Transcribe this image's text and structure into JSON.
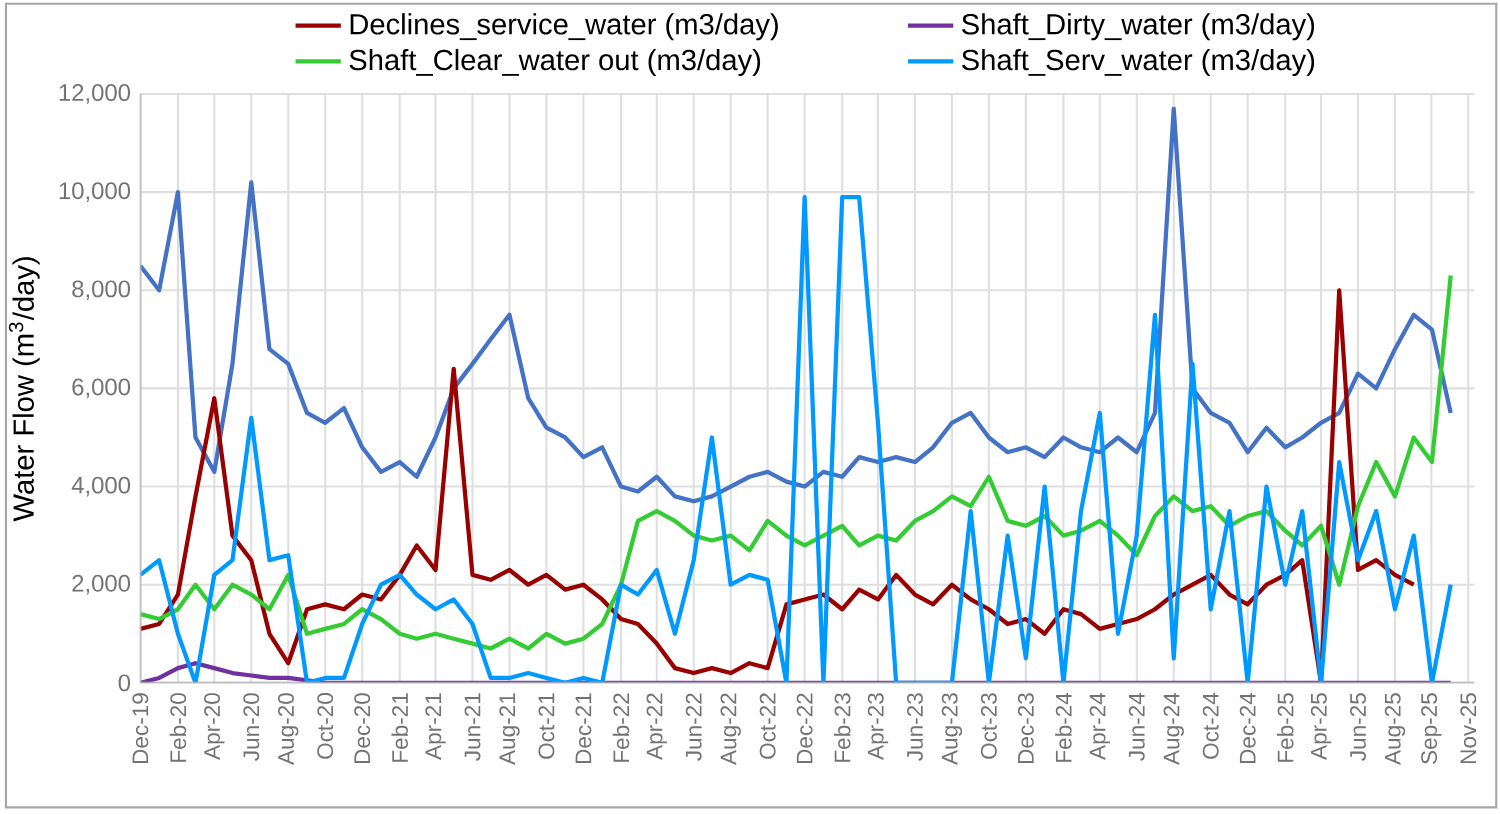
{
  "chart_data": {
    "type": "line",
    "ylabel": "Water Flow (m$^{3}$/day)",
    "x": [
      "2019-12",
      "2020-01",
      "2020-02",
      "2020-03",
      "2020-04",
      "2020-05",
      "2020-06",
      "2020-07",
      "2020-08",
      "2020-09",
      "2020-10",
      "2020-11",
      "2020-12",
      "2021-01",
      "2021-02",
      "2021-03",
      "2021-04",
      "2021-05",
      "2021-06",
      "2021-07",
      "2021-08",
      "2021-09",
      "2021-10",
      "2021-11",
      "2021-12",
      "2022-01",
      "2022-02",
      "2022-03",
      "2022-04",
      "2022-05",
      "2022-06",
      "2022-07",
      "2022-08",
      "2022-09",
      "2022-10",
      "2022-11",
      "2022-12",
      "2023-01",
      "2023-02",
      "2023-03",
      "2023-04",
      "2023-05",
      "2023-06",
      "2023-07",
      "2023-08",
      "2023-09",
      "2023-10",
      "2023-11",
      "2023-12",
      "2024-01",
      "2024-02",
      "2024-03",
      "2024-04",
      "2024-05",
      "2024-06",
      "2024-07",
      "2024-08",
      "2024-09",
      "2024-10",
      "2024-11",
      "2024-12",
      "2025-01",
      "2025-02",
      "2025-03",
      "2025-04",
      "2025-05",
      "2025-06",
      "2025-07",
      "2025-08",
      "2025-09",
      "2025-10",
      "2025-11"
    ],
    "series": [
      {
        "color": "#4472c4",
        "values": [
          8500,
          8000,
          10000,
          5000,
          4300,
          6500,
          10200,
          6800,
          6500,
          5500,
          5300,
          5600,
          4800,
          4300,
          4500,
          4200,
          5000,
          6000,
          6500,
          7000,
          7500,
          5800,
          5200,
          5000,
          4600,
          4800,
          4000,
          3900,
          4200,
          3800,
          3700,
          3800,
          4000,
          4200,
          4300,
          4100,
          4000,
          4300,
          4200,
          4600,
          4500,
          4600,
          4500,
          4800,
          5300,
          5500,
          5000,
          4700,
          4800,
          4600,
          5000,
          4800,
          4700,
          5000,
          4700,
          5500,
          11700,
          6000,
          5500,
          5300,
          4700,
          5200,
          4800,
          5000,
          5300,
          5500,
          6300,
          6000,
          6800,
          7500,
          7200,
          5500
        ]
      },
      {
        "name": "Declines_service_water (m3/day)",
        "color": "#990000",
        "values": [
          1100,
          1200,
          1800,
          3800,
          5800,
          3000,
          2500,
          1000,
          400,
          1500,
          1600,
          1500,
          1800,
          1700,
          2200,
          2800,
          2300,
          6400,
          2200,
          2100,
          2300,
          2000,
          2200,
          1900,
          2000,
          1700,
          1300,
          1200,
          800,
          300,
          200,
          300,
          200,
          400,
          300,
          1600,
          1700,
          1800,
          1500,
          1900,
          1700,
          2200,
          1800,
          1600,
          2000,
          1700,
          1500,
          1200,
          1300,
          1000,
          1500,
          1400,
          1100,
          1200,
          1300,
          1500,
          1800,
          2000,
          2200,
          1800,
          1600,
          2000,
          2200,
          2500,
          0,
          8000,
          2300,
          2500,
          2200,
          2000,
          null,
          null
        ]
      },
      {
        "name": "Shaft_Dirty_water (m3/day)",
        "color": "#7030a0",
        "values": [
          0,
          100,
          300,
          400,
          300,
          200,
          150,
          100,
          100,
          50,
          0,
          0,
          0,
          0,
          0,
          0,
          0,
          0,
          0,
          0,
          0,
          0,
          0,
          0,
          0,
          0,
          0,
          0,
          0,
          0,
          0,
          0,
          0,
          0,
          0,
          0,
          0,
          0,
          0,
          0,
          0,
          0,
          0,
          0,
          0,
          0,
          0,
          0,
          0,
          0,
          0,
          0,
          0,
          0,
          0,
          0,
          0,
          0,
          0,
          0,
          0,
          0,
          0,
          0,
          0,
          0,
          0,
          0,
          0,
          0,
          0,
          0
        ]
      },
      {
        "name": "Shaft_Clear_water out (m3/day)",
        "color": "#33cc33",
        "values": [
          1400,
          1300,
          1500,
          2000,
          1500,
          2000,
          1800,
          1500,
          2200,
          1000,
          1100,
          1200,
          1500,
          1300,
          1000,
          900,
          1000,
          900,
          800,
          700,
          900,
          700,
          1000,
          800,
          900,
          1200,
          2000,
          3300,
          3500,
          3300,
          3000,
          2900,
          3000,
          2700,
          3300,
          3000,
          2800,
          3000,
          3200,
          2800,
          3000,
          2900,
          3300,
          3500,
          3800,
          3600,
          4200,
          3300,
          3200,
          3400,
          3000,
          3100,
          3300,
          3000,
          2600,
          3400,
          3800,
          3500,
          3600,
          3200,
          3400,
          3500,
          3100,
          2800,
          3200,
          2000,
          3600,
          4500,
          3800,
          5000,
          4500,
          8300
        ]
      },
      {
        "name": "Shaft_Serv_water (m3/day)",
        "color": "#0099ff",
        "values": [
          2200,
          2500,
          1000,
          0,
          2200,
          2500,
          5400,
          2500,
          2600,
          0,
          100,
          100,
          1200,
          2000,
          2200,
          1800,
          1500,
          1700,
          1200,
          100,
          100,
          200,
          100,
          0,
          100,
          0,
          2000,
          1800,
          2300,
          1000,
          2500,
          5000,
          2000,
          2200,
          2100,
          0,
          9900,
          0,
          9900,
          9900,
          5300,
          0,
          0,
          0,
          0,
          3500,
          0,
          3000,
          500,
          4000,
          0,
          3500,
          5500,
          1000,
          3000,
          7500,
          500,
          6500,
          1500,
          3500,
          0,
          4000,
          2000,
          3500,
          0,
          4500,
          2500,
          3500,
          1500,
          3000,
          0,
          2000
        ]
      }
    ],
    "xlim": [
      "2019-12-01",
      "2025-12-10"
    ],
    "xticks": [
      {
        "value": "2019-12-01",
        "label": "Dec-19"
      },
      {
        "value": "2020-02-01",
        "label": "Feb-20"
      },
      {
        "value": "2020-04-01",
        "label": "Apr-20"
      },
      {
        "value": "2020-06-01",
        "label": "Jun-20"
      },
      {
        "value": "2020-08-01",
        "label": "Aug-20"
      },
      {
        "value": "2020-10-01",
        "label": "Oct-20"
      },
      {
        "value": "2020-12-01",
        "label": "Dec-20"
      },
      {
        "value": "2021-02-01",
        "label": "Feb-21"
      },
      {
        "value": "2021-04-01",
        "label": "Apr-21"
      },
      {
        "value": "2021-06-01",
        "label": "Jun-21"
      },
      {
        "value": "2021-08-01",
        "label": "Aug-21"
      },
      {
        "value": "2021-10-01",
        "label": "Oct-21"
      },
      {
        "value": "2021-12-01",
        "label": "Dec-21"
      },
      {
        "value": "2022-02-01",
        "label": "Feb-22"
      },
      {
        "value": "2022-04-01",
        "label": "Apr-22"
      },
      {
        "value": "2022-06-01",
        "label": "Jun-22"
      },
      {
        "value": "2022-08-01",
        "label": "Aug-22"
      },
      {
        "value": "2022-10-01",
        "label": "Oct-22"
      },
      {
        "value": "2022-12-01",
        "label": "Dec-22"
      },
      {
        "value": "2023-02-01",
        "label": "Feb-23"
      },
      {
        "value": "2023-04-01",
        "label": "Apr-23"
      },
      {
        "value": "2023-06-01",
        "label": "Jun-23"
      },
      {
        "value": "2023-08-01",
        "label": "Aug-23"
      },
      {
        "value": "2023-10-01",
        "label": "Oct-23"
      },
      {
        "value": "2023-12-01",
        "label": "Dec-23"
      },
      {
        "value": "2024-02-01",
        "label": "Feb-24"
      },
      {
        "value": "2024-04-01",
        "label": "Apr-24"
      },
      {
        "value": "2024-06-01",
        "label": "Jun-24"
      },
      {
        "value": "2024-08-01",
        "label": "Aug-24"
      },
      {
        "value": "2024-10-01",
        "label": "Oct-24"
      },
      {
        "value": "2024-12-01",
        "label": "Dec-24"
      },
      {
        "value": "2025-02-01",
        "label": "Feb-25"
      },
      {
        "value": "2025-04-01",
        "label": "Apr-25"
      },
      {
        "value": "2025-06-01",
        "label": "Jun-25"
      },
      {
        "value": "2025-08-01",
        "label": "Aug-25"
      },
      {
        "value": "2025-09-30",
        "label": "Sep-25"
      },
      {
        "value": "2025-11-30",
        "label": "Nov-25"
      }
    ],
    "ylim": [
      0,
      12000
    ],
    "yticks": [
      {
        "value": 0,
        "label": "0"
      },
      {
        "value": 2000,
        "label": "2,000"
      },
      {
        "value": 4000,
        "label": "4,000"
      },
      {
        "value": 6000,
        "label": "6,000"
      },
      {
        "value": 8000,
        "label": "8,000"
      },
      {
        "value": 10000,
        "label": "10,000"
      },
      {
        "value": 12000,
        "label": "12,000"
      }
    ],
    "grid": true,
    "legend": "top",
    "marker": "none",
    "line_style": "solid"
  }
}
